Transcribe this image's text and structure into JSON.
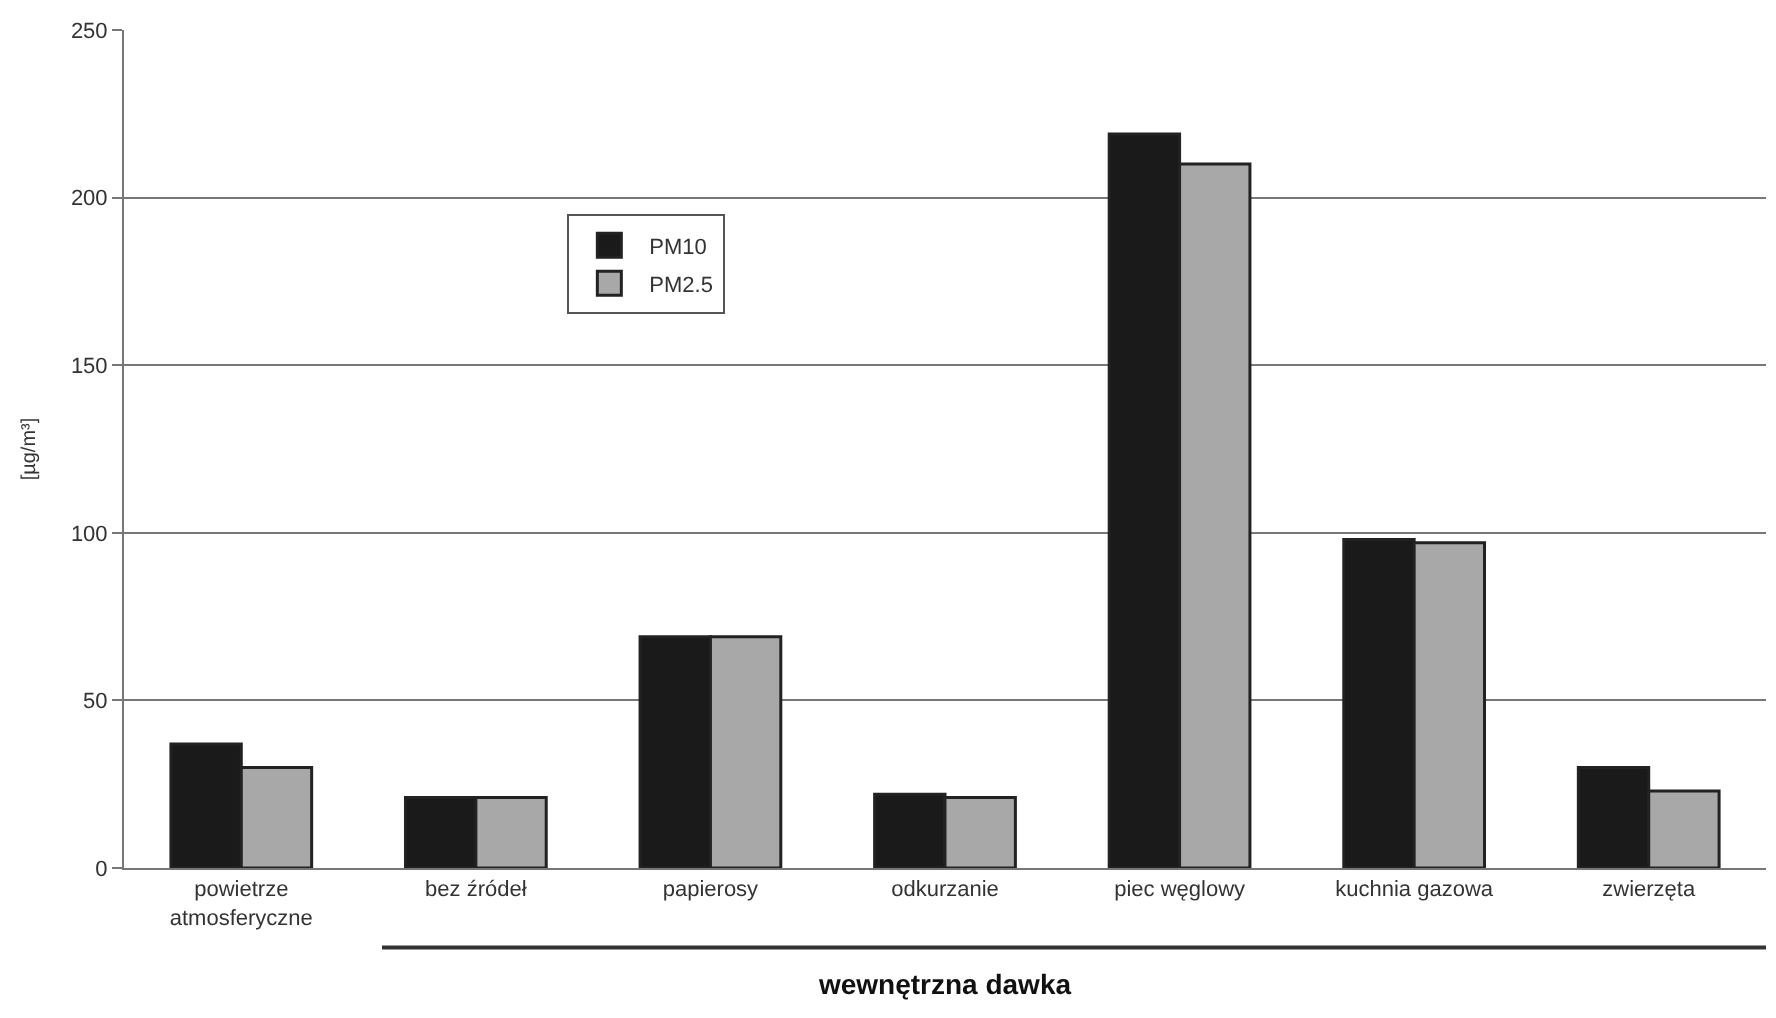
{
  "chart_data": {
    "type": "bar",
    "xlabel": "wewnętrzna dawka",
    "ylabel": "[µg/m³]",
    "categories": [
      "powietrze atmosferyczne",
      "bez źródeł",
      "papierosy",
      "odkurzanie",
      "piec węglowy",
      "kuchnia gazowa",
      "zwierzęta"
    ],
    "series": [
      {
        "name": "PM10",
        "color": "#1a1a1a",
        "values": [
          37,
          21,
          69,
          22,
          219,
          98,
          30
        ]
      },
      {
        "name": "PM2.5",
        "color": "#a8a8a8",
        "values": [
          30,
          21,
          69,
          21,
          210,
          97,
          23
        ]
      }
    ],
    "ylim": [
      0,
      250
    ],
    "yticks": [
      0,
      50,
      100,
      150,
      200,
      250
    ],
    "grid": "y",
    "legend": "top left"
  }
}
